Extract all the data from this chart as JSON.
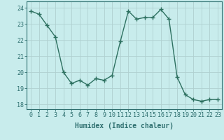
{
  "x": [
    0,
    1,
    2,
    3,
    4,
    5,
    6,
    7,
    8,
    9,
    10,
    11,
    12,
    13,
    14,
    15,
    16,
    17,
    18,
    19,
    20,
    21,
    22,
    23
  ],
  "y": [
    23.8,
    23.6,
    22.9,
    22.2,
    20.0,
    19.3,
    19.5,
    19.2,
    19.6,
    19.5,
    19.8,
    21.9,
    23.8,
    23.3,
    23.4,
    23.4,
    23.9,
    23.3,
    19.7,
    18.6,
    18.3,
    18.2,
    18.3,
    18.3
  ],
  "line_color": "#2d7060",
  "marker": "+",
  "marker_size": 4,
  "bg_color": "#c8ecec",
  "grid_color": "#b0d0d0",
  "xlabel": "Humidex (Indice chaleur)",
  "ylim": [
    17.7,
    24.4
  ],
  "yticks": [
    18,
    19,
    20,
    21,
    22,
    23,
    24
  ],
  "xlim": [
    -0.5,
    23.5
  ],
  "xtick_labels": [
    "0",
    "1",
    "2",
    "3",
    "4",
    "5",
    "6",
    "7",
    "8",
    "9",
    "10",
    "11",
    "12",
    "13",
    "14",
    "15",
    "16",
    "17",
    "18",
    "19",
    "20",
    "21",
    "22",
    "23"
  ],
  "xlabel_fontsize": 7,
  "tick_fontsize": 6,
  "tick_color": "#2d6e6e",
  "axis_color": "#2d6e6e",
  "line_width": 1.0,
  "marker_color": "#2d7060"
}
